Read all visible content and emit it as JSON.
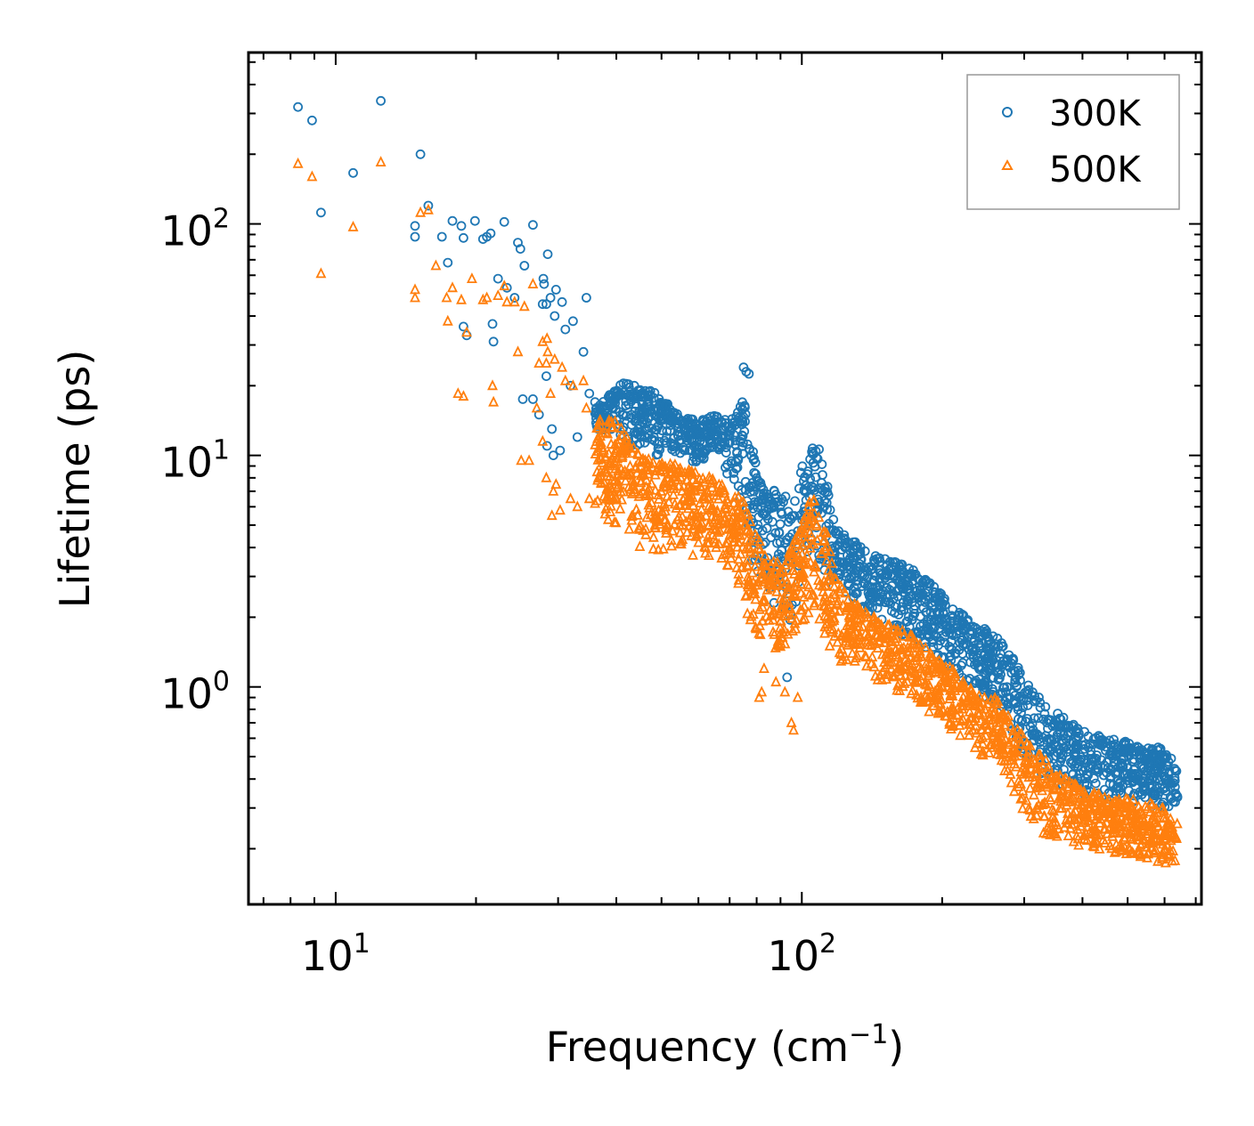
{
  "chart_data": {
    "type": "scatter",
    "xscale": "log",
    "yscale": "log",
    "xlabel": "Frequency (cm",
    "xlabel_sup": "−1",
    "xlabel_end": ")",
    "ylabel": "Lifetime (ps)",
    "xlim": [
      6.5,
      720
    ],
    "ylim": [
      0.115,
      550
    ],
    "xticks": [
      {
        "base": "10",
        "exp": "1",
        "value": 10
      },
      {
        "base": "10",
        "exp": "2",
        "value": 100
      }
    ],
    "yticks": [
      {
        "base": "10",
        "exp": "0",
        "value": 1
      },
      {
        "base": "10",
        "exp": "1",
        "value": 10
      },
      {
        "base": "10",
        "exp": "2",
        "value": 100
      }
    ],
    "legend_position": "top-right",
    "series": [
      {
        "name": "300K",
        "marker": "circle",
        "color": "#1f77b4",
        "points": [
          [
            8.3,
            320
          ],
          [
            8.9,
            280
          ],
          [
            9.3,
            112
          ],
          [
            10.9,
            166
          ],
          [
            12.5,
            340
          ],
          [
            14.8,
            98
          ],
          [
            14.8,
            88
          ],
          [
            15.2,
            200
          ],
          [
            15.8,
            120
          ],
          [
            16.9,
            88
          ],
          [
            17.4,
            68
          ],
          [
            17.8,
            103
          ],
          [
            18.6,
            98
          ],
          [
            18.8,
            87
          ],
          [
            18.8,
            36
          ],
          [
            19.1,
            33
          ],
          [
            19.9,
            103
          ],
          [
            20.7,
            86
          ],
          [
            21.1,
            88
          ],
          [
            21.5,
            91
          ],
          [
            21.7,
            37
          ],
          [
            21.8,
            31
          ],
          [
            22.3,
            58
          ],
          [
            23,
            102
          ],
          [
            23.3,
            53
          ],
          [
            24.2,
            48
          ],
          [
            24.6,
            83
          ],
          [
            24.9,
            78
          ],
          [
            25.2,
            17.5
          ],
          [
            25.4,
            66
          ],
          [
            26.5,
            17.5
          ],
          [
            26.5,
            99
          ],
          [
            27.3,
            15
          ],
          [
            27.8,
            45
          ],
          [
            27.9,
            58
          ],
          [
            28,
            55
          ],
          [
            28.3,
            22
          ],
          [
            28.3,
            45
          ],
          [
            28.4,
            11
          ],
          [
            28.5,
            74
          ],
          [
            28.9,
            48
          ],
          [
            29.1,
            13
          ],
          [
            29.3,
            10
          ],
          [
            29.5,
            40
          ],
          [
            29.7,
            52
          ],
          [
            30.3,
            10.5
          ],
          [
            30.6,
            46
          ],
          [
            31.1,
            35
          ],
          [
            31.9,
            20
          ],
          [
            32.3,
            38
          ],
          [
            33,
            12
          ],
          [
            34,
            28
          ],
          [
            34.5,
            48
          ],
          [
            35,
            18.5
          ],
          [
            36,
            17
          ],
          [
            37,
            14
          ],
          [
            39,
            13
          ],
          [
            75,
            24
          ],
          [
            76,
            23
          ],
          [
            77,
            22.5
          ],
          [
            93,
            1.1
          ]
        ]
      },
      {
        "name": "500K",
        "marker": "triangle",
        "color": "#ff7f0e",
        "points": [
          [
            8.3,
            182
          ],
          [
            8.9,
            160
          ],
          [
            9.3,
            61
          ],
          [
            10.9,
            97
          ],
          [
            12.5,
            185
          ],
          [
            14.8,
            52
          ],
          [
            14.8,
            48
          ],
          [
            15.2,
            112
          ],
          [
            15.8,
            115
          ],
          [
            16.4,
            66
          ],
          [
            17.3,
            48
          ],
          [
            17.4,
            38
          ],
          [
            17.8,
            53
          ],
          [
            18.3,
            18.5
          ],
          [
            18.6,
            47
          ],
          [
            18.8,
            18
          ],
          [
            19.1,
            34
          ],
          [
            19.6,
            58
          ],
          [
            20.7,
            47
          ],
          [
            21.1,
            48
          ],
          [
            21.7,
            20
          ],
          [
            21.8,
            17
          ],
          [
            22.3,
            49
          ],
          [
            23,
            54
          ],
          [
            23.3,
            46
          ],
          [
            24.2,
            46
          ],
          [
            24.6,
            28
          ],
          [
            25,
            9.5
          ],
          [
            25.4,
            44
          ],
          [
            26,
            9.5
          ],
          [
            26.5,
            55
          ],
          [
            27,
            16
          ],
          [
            27.3,
            25
          ],
          [
            27.8,
            31
          ],
          [
            27.8,
            11.5
          ],
          [
            28.3,
            25
          ],
          [
            28.3,
            8
          ],
          [
            28.4,
            32
          ],
          [
            28.5,
            28
          ],
          [
            28.9,
            18.5
          ],
          [
            29.1,
            5.5
          ],
          [
            29.3,
            7
          ],
          [
            29.5,
            26
          ],
          [
            29.7,
            7.5
          ],
          [
            30.3,
            5.8
          ],
          [
            30.6,
            24
          ],
          [
            31.1,
            21
          ],
          [
            31.9,
            6.5
          ],
          [
            32.3,
            20
          ],
          [
            33,
            6
          ],
          [
            34,
            21
          ],
          [
            34.5,
            16
          ],
          [
            35,
            6.5
          ],
          [
            36,
            6.2
          ],
          [
            81,
            0.9
          ],
          [
            82,
            0.95
          ],
          [
            83,
            1.2
          ],
          [
            88,
            1.05
          ],
          [
            92,
            0.95
          ],
          [
            95,
            0.7
          ],
          [
            96,
            0.65
          ],
          [
            98,
            0.9
          ]
        ]
      }
    ],
    "bulk": [
      {
        "series": "300K",
        "color": "#1f77b4",
        "marker": "circle",
        "knots": [
          [
            36,
            17,
            13
          ],
          [
            42,
            21,
            11
          ],
          [
            48,
            19,
            10
          ],
          [
            55,
            15,
            10
          ],
          [
            60,
            14,
            9
          ],
          [
            65,
            15,
            10
          ],
          [
            70,
            14,
            8
          ],
          [
            75,
            18,
            5
          ],
          [
            78,
            11,
            3.5
          ],
          [
            83,
            7,
            2
          ],
          [
            90,
            7.5,
            2.4
          ],
          [
            95,
            6,
            1.8
          ],
          [
            100,
            9,
            3
          ],
          [
            105,
            11,
            4
          ],
          [
            110,
            11,
            2.5
          ],
          [
            118,
            5,
            2.2
          ],
          [
            125,
            4.5,
            2.5
          ],
          [
            135,
            4,
            2
          ],
          [
            150,
            3.6,
            1.8
          ],
          [
            170,
            3.3,
            1.6
          ],
          [
            190,
            2.8,
            1.4
          ],
          [
            210,
            2.3,
            1.2
          ],
          [
            230,
            1.9,
            1
          ],
          [
            260,
            1.7,
            0.8
          ],
          [
            280,
            1.4,
            0.6
          ],
          [
            300,
            1.1,
            0.5
          ],
          [
            330,
            0.85,
            0.4
          ],
          [
            360,
            0.75,
            0.35
          ],
          [
            400,
            0.65,
            0.33
          ],
          [
            450,
            0.6,
            0.32
          ],
          [
            500,
            0.58,
            0.32
          ],
          [
            550,
            0.55,
            0.3
          ],
          [
            600,
            0.55,
            0.3
          ],
          [
            640,
            0.45,
            0.3
          ]
        ],
        "count": 1800
      },
      {
        "series": "500K",
        "color": "#ff7f0e",
        "marker": "triangle",
        "knots": [
          [
            36,
            15,
            5.5
          ],
          [
            40,
            14,
            5
          ],
          [
            45,
            10,
            4
          ],
          [
            50,
            9.5,
            3.8
          ],
          [
            55,
            9,
            3.6
          ],
          [
            60,
            8.5,
            3.6
          ],
          [
            65,
            8,
            3.5
          ],
          [
            70,
            7,
            3
          ],
          [
            75,
            6.5,
            2.5
          ],
          [
            78,
            5,
            1.6
          ],
          [
            83,
            4,
            1.5
          ],
          [
            90,
            3.5,
            1.4
          ],
          [
            95,
            4,
            1.4
          ],
          [
            100,
            5,
            1.6
          ],
          [
            105,
            7,
            2
          ],
          [
            110,
            6,
            1.8
          ],
          [
            118,
            3,
            1.3
          ],
          [
            125,
            2.5,
            1.2
          ],
          [
            135,
            2.2,
            1.1
          ],
          [
            150,
            1.9,
            1
          ],
          [
            170,
            1.7,
            0.9
          ],
          [
            190,
            1.4,
            0.75
          ],
          [
            210,
            1.2,
            0.65
          ],
          [
            230,
            1,
            0.55
          ],
          [
            260,
            0.9,
            0.45
          ],
          [
            280,
            0.75,
            0.35
          ],
          [
            300,
            0.6,
            0.24
          ],
          [
            330,
            0.5,
            0.22
          ],
          [
            360,
            0.42,
            0.21
          ],
          [
            400,
            0.36,
            0.2
          ],
          [
            450,
            0.34,
            0.19
          ],
          [
            500,
            0.33,
            0.18
          ],
          [
            550,
            0.32,
            0.18
          ],
          [
            600,
            0.3,
            0.16
          ],
          [
            640,
            0.26,
            0.17
          ]
        ],
        "count": 1800
      }
    ]
  }
}
